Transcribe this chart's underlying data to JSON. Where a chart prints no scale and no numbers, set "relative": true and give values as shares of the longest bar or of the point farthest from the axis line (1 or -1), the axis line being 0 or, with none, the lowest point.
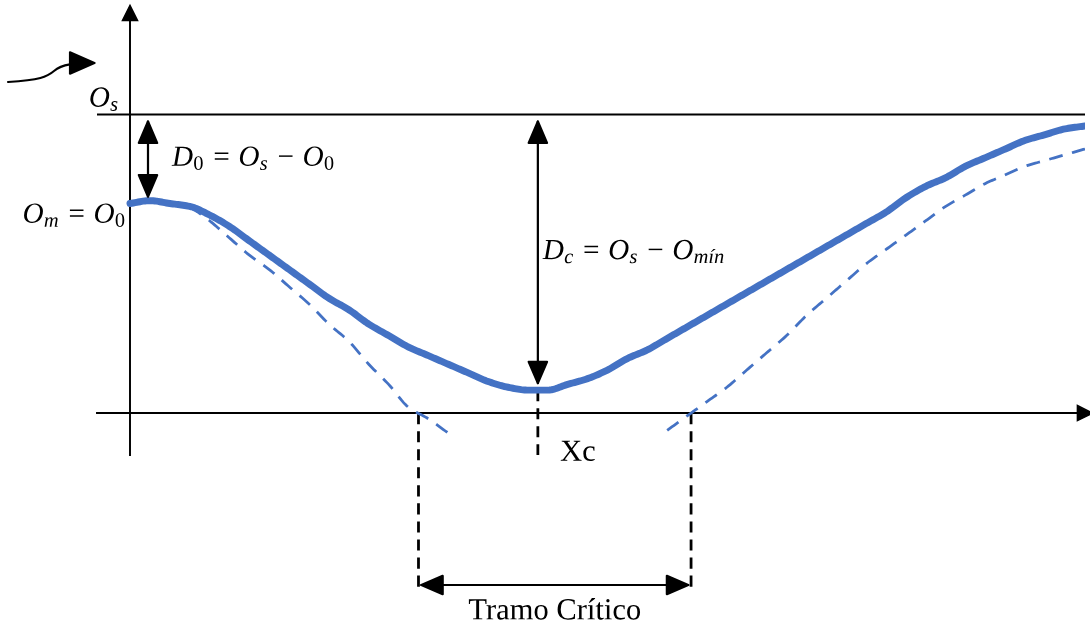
{
  "chart_data": {
    "type": "line",
    "relative": true,
    "categories": [
      null,
      null,
      null,
      null,
      null,
      null,
      null,
      null,
      null,
      null,
      null,
      null,
      null,
      null,
      null,
      null,
      null,
      null,
      null,
      null,
      null,
      null,
      null,
      null,
      null,
      null,
      null,
      null,
      null,
      null,
      null,
      null,
      null,
      null,
      null,
      null,
      null,
      null,
      null,
      null,
      null,
      null,
      null,
      null,
      null,
      null,
      null,
      null,
      null
    ],
    "series": [
      {
        "color": "#4472c4",
        "line_style": "solid",
        "values": [
          0.73,
          0.74,
          0.73,
          0.72,
          0.69,
          0.65,
          0.6,
          0.55,
          0.5,
          0.45,
          0.4,
          0.36,
          0.31,
          0.27,
          0.23,
          0.2,
          0.17,
          0.14,
          0.11,
          0.09,
          0.08,
          0.08,
          0.1,
          0.12,
          0.15,
          0.19,
          0.22,
          0.26,
          0.3,
          0.34,
          0.38,
          0.42,
          0.46,
          0.5,
          0.54,
          0.58,
          0.62,
          0.66,
          0.7,
          0.75,
          0.79,
          0.82,
          0.86,
          0.89,
          0.92,
          0.95,
          0.97,
          0.99,
          1.0
        ]
      },
      {
        "color": "#4472c4",
        "line_style": "dashed",
        "values": [
          null,
          null,
          null,
          0.72,
          0.67,
          0.61,
          0.55,
          0.5,
          0.44,
          0.38,
          0.31,
          0.25,
          0.17,
          0.1,
          0.02,
          -0.02,
          -0.07,
          null,
          null,
          null,
          null,
          null,
          null,
          null,
          null,
          null,
          null,
          null,
          null,
          null,
          null,
          null,
          null,
          null,
          null,
          null,
          null,
          null,
          null,
          null,
          null,
          null,
          null,
          null,
          null,
          null,
          null,
          null,
          null
        ]
      },
      {
        "color": "#4472c4",
        "line_style": "dashed",
        "values": [
          null,
          null,
          null,
          null,
          null,
          null,
          null,
          null,
          null,
          null,
          null,
          null,
          null,
          null,
          null,
          null,
          null,
          null,
          null,
          null,
          null,
          null,
          null,
          null,
          null,
          null,
          null,
          -0.06,
          -0.01,
          0.04,
          0.09,
          0.15,
          0.21,
          0.27,
          0.34,
          0.4,
          0.46,
          0.52,
          0.57,
          0.62,
          0.67,
          0.72,
          0.76,
          0.8,
          0.83,
          0.86,
          0.88,
          0.9,
          0.92
        ]
      }
    ],
    "ref_lines": [
      {
        "axis": "y",
        "value": 1.04,
        "label": "O$_{s}$",
        "color": "#000000"
      }
    ],
    "annotations": [
      "D$_{0}$ = O$_{s}$ − O$_{0}$",
      "O$_{m}$ = O$_{0}$",
      "D$_{c}$ = O$_{s}$ − O$_{mín}$",
      "Xc",
      "Tramo Crítico"
    ]
  }
}
